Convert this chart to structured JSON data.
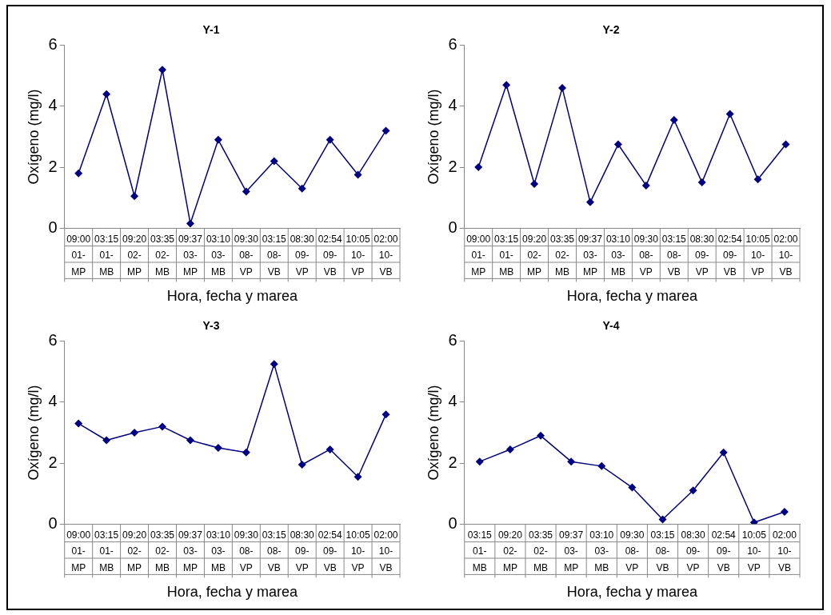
{
  "chart_data": [
    {
      "type": "line",
      "title": "Y-1",
      "xlabel": "Hora, fecha y marea",
      "ylabel": "Oxígeno (mg/l)",
      "categories": [
        "09:00\n01-\nMP",
        "03:15\n01-\nMB",
        "09:20\n02-\nMP",
        "03:35\n02-\nMB",
        "09:37\n03-\nMP",
        "03:10\n03-\nMB",
        "09:30\n08-\nVP",
        "03:15\n08-\nVB",
        "08:30\n09-\nVP",
        "02:54\n09-\nVB",
        "10:05\n10-\nVP",
        "02:00\n10-\nVB"
      ],
      "series": [
        {
          "color": "#000080",
          "values": [
            1.8,
            4.4,
            1.05,
            5.2,
            0.15,
            2.9,
            1.2,
            2.2,
            1.3,
            2.9,
            1.75,
            3.2
          ]
        }
      ],
      "ylim": [
        0,
        6
      ],
      "yticks": [
        0,
        2,
        4,
        6
      ],
      "grid": false,
      "legend": false,
      "marker": "diamond",
      "line_style": "solid"
    },
    {
      "type": "line",
      "title": "Y-2",
      "xlabel": "Hora, fecha y marea",
      "ylabel": "Oxígeno (mg/l)",
      "categories": [
        "09:00\n01-\nMP",
        "03:15\n01-\nMB",
        "09:20\n02-\nMP",
        "03:35\n02-\nMB",
        "09:37\n03-\nMP",
        "03:10\n03-\nMB",
        "09:30\n08-\nVP",
        "03:15\n08-\nVB",
        "08:30\n09-\nVP",
        "02:54\n09-\nVB",
        "10:05\n10-\nVP",
        "02:00\n10-\nVB"
      ],
      "series": [
        {
          "color": "#000080",
          "values": [
            2.0,
            4.7,
            1.45,
            4.6,
            0.85,
            2.75,
            1.4,
            3.55,
            1.5,
            3.75,
            1.6,
            2.75
          ]
        }
      ],
      "ylim": [
        0,
        6
      ],
      "yticks": [
        0,
        2,
        4,
        6
      ],
      "grid": false,
      "legend": false,
      "marker": "diamond",
      "line_style": "solid"
    },
    {
      "type": "line",
      "title": "Y-3",
      "xlabel": "Hora, fecha y marea",
      "ylabel": "Oxígeno (mg/l)",
      "categories": [
        "09:00\n01-\nMP",
        "03:15\n01-\nMB",
        "09:20\n02-\nMP",
        "03:35\n02-\nMB",
        "09:37\n03-\nMP",
        "03:10\n03-\nMB",
        "09:30\n08-\nVP",
        "03:15\n08-\nVB",
        "08:30\n09-\nVP",
        "02:54\n09-\nVB",
        "10:05\n10-\nVP",
        "02:00\n10-\nVB"
      ],
      "series": [
        {
          "color": "#000080",
          "values": [
            3.3,
            2.75,
            3.0,
            3.2,
            2.75,
            2.5,
            2.35,
            5.25,
            1.95,
            2.45,
            1.55,
            3.6
          ]
        }
      ],
      "ylim": [
        0,
        6
      ],
      "yticks": [
        0,
        2,
        4,
        6
      ],
      "grid": false,
      "legend": false,
      "marker": "diamond",
      "line_style": "solid"
    },
    {
      "type": "line",
      "title": "Y-4",
      "xlabel": "Hora, fecha y marea",
      "ylabel": "Oxígeno (mg/l)",
      "categories": [
        "03:15\n01-\nMB",
        "09:20\n02-\nMP",
        "03:35\n02-\nMB",
        "09:37\n03-\nMP",
        "03:10\n03-\nMB",
        "09:30\n08-\nVP",
        "03:15\n08-\nVB",
        "08:30\n09-\nVP",
        "02:54\n09-\nVB",
        "10:05\n10-\nVP",
        "02:00\n10-\nVB"
      ],
      "series": [
        {
          "color": "#000080",
          "values": [
            2.05,
            2.45,
            2.9,
            2.05,
            1.9,
            1.2,
            0.15,
            1.1,
            2.35,
            0.05,
            0.4
          ]
        }
      ],
      "ylim": [
        0,
        6
      ],
      "yticks": [
        0,
        2,
        4,
        6
      ],
      "grid": false,
      "legend": false,
      "marker": "diamond",
      "line_style": "solid"
    }
  ]
}
